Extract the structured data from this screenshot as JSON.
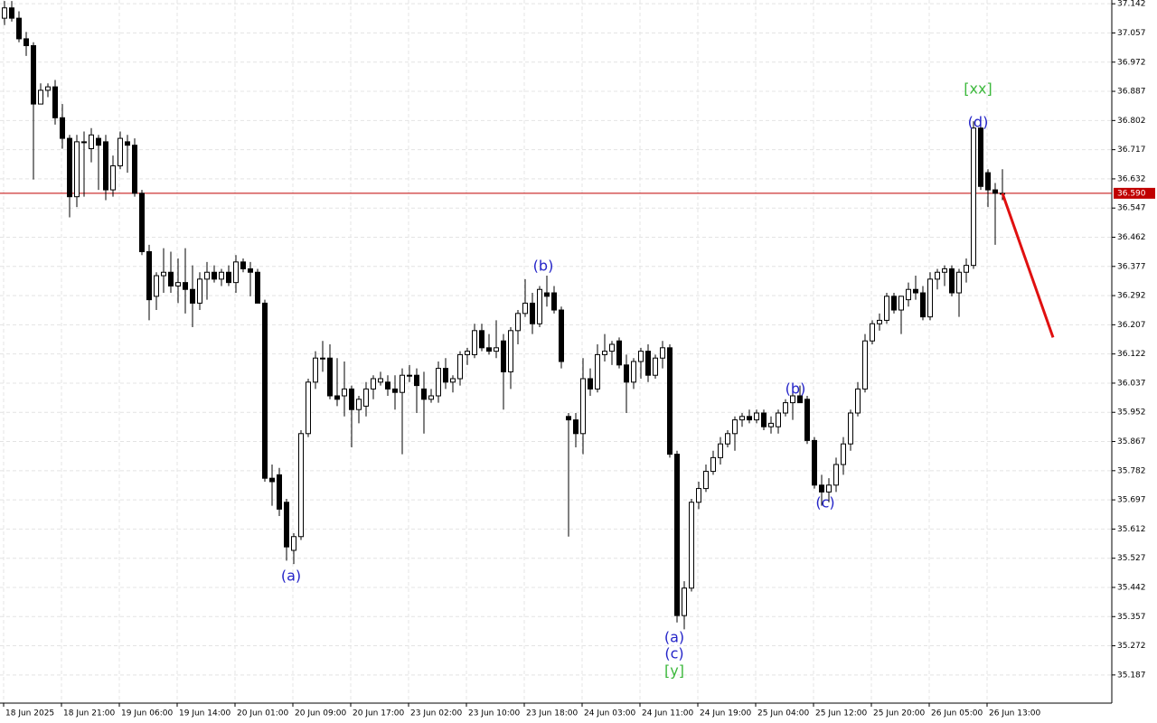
{
  "chart_data": {
    "type": "candlestick",
    "ylim": [
      35.105,
      37.153
    ],
    "yticks": [
      37.142,
      37.057,
      36.972,
      36.887,
      36.802,
      36.717,
      36.632,
      36.547,
      36.462,
      36.377,
      36.292,
      36.207,
      36.122,
      36.037,
      35.952,
      35.867,
      35.782,
      35.697,
      35.612,
      35.527,
      35.442,
      35.357,
      35.272,
      35.187
    ],
    "grid": true,
    "x_labels": [
      "18 Jun 2025",
      "18 Jun 21:00",
      "19 Jun 06:00",
      "19 Jun 14:00",
      "20 Jun 01:00",
      "20 Jun 09:00",
      "20 Jun 17:00",
      "23 Jun 02:00",
      "23 Jun 10:00",
      "23 Jun 18:00",
      "24 Jun 03:00",
      "24 Jun 11:00",
      "24 Jun 19:00",
      "25 Jun 04:00",
      "25 Jun 12:00",
      "25 Jun 20:00",
      "26 Jun 05:00",
      "26 Jun 13:00"
    ],
    "open": [
      37.1,
      37.13,
      37.1,
      37.04,
      37.02,
      36.85,
      36.89,
      36.9,
      36.81,
      36.75,
      36.58,
      36.74,
      36.72,
      36.75,
      36.74,
      36.6,
      36.67,
      36.74,
      36.73,
      36.59,
      36.42,
      36.29,
      36.35,
      36.36,
      36.32,
      36.33,
      36.31,
      36.27,
      36.34,
      36.36,
      36.34,
      36.36,
      36.33,
      36.39,
      36.37,
      36.36,
      36.27,
      35.76,
      35.77,
      35.69,
      35.55,
      35.59,
      35.89,
      36.04,
      36.11,
      36.11,
      36.0,
      36.0,
      36.02,
      35.96,
      35.97,
      36.02,
      36.04,
      36.04,
      36.02,
      36.01,
      36.06,
      36.06,
      36.02,
      35.99,
      36.0,
      36.08,
      36.04,
      36.05,
      36.12,
      36.12,
      36.19,
      36.14,
      36.13,
      36.16,
      36.07,
      36.19,
      36.24,
      36.27,
      36.21,
      36.3,
      36.3,
      36.25,
      35.94,
      35.93,
      35.89,
      36.05,
      36.02,
      36.12,
      36.13,
      36.16,
      36.09,
      36.04,
      36.1,
      36.13,
      36.06,
      36.11,
      36.14,
      35.83,
      35.36,
      35.44,
      35.69,
      35.73,
      35.78,
      35.82,
      35.86,
      35.89,
      35.93,
      35.94,
      35.93,
      35.95,
      35.91,
      35.91,
      35.95,
      35.98,
      36.0,
      35.99,
      35.87,
      35.74,
      35.72,
      35.74,
      35.8,
      35.86,
      35.95,
      36.02,
      36.16,
      36.21,
      36.22,
      36.29,
      36.25,
      36.28,
      36.31,
      36.3,
      36.23,
      36.34,
      36.36,
      36.37,
      36.3,
      36.36,
      36.38,
      36.78,
      36.65,
      36.6,
      36.59
    ],
    "high": [
      37.15,
      37.15,
      37.12,
      37.06,
      37.03,
      36.91,
      36.91,
      36.92,
      36.85,
      36.76,
      36.76,
      36.77,
      36.78,
      36.76,
      36.76,
      36.7,
      36.77,
      36.76,
      36.75,
      36.6,
      36.44,
      36.36,
      36.43,
      36.42,
      36.4,
      36.43,
      36.38,
      36.36,
      36.39,
      36.38,
      36.37,
      36.38,
      36.41,
      36.4,
      36.39,
      36.37,
      36.28,
      35.8,
      35.79,
      35.7,
      35.6,
      35.9,
      36.05,
      36.13,
      36.16,
      36.15,
      36.11,
      36.1,
      36.03,
      36.0,
      36.04,
      36.06,
      36.07,
      36.06,
      36.06,
      36.08,
      36.09,
      36.08,
      36.07,
      36.02,
      36.1,
      36.11,
      36.06,
      36.13,
      36.14,
      36.21,
      36.21,
      36.18,
      36.22,
      36.18,
      36.2,
      36.25,
      36.34,
      36.3,
      36.32,
      36.35,
      36.32,
      36.26,
      35.95,
      35.95,
      36.11,
      36.08,
      36.15,
      36.18,
      36.16,
      36.17,
      36.12,
      36.11,
      36.14,
      36.15,
      36.12,
      36.16,
      36.15,
      35.84,
      35.46,
      35.7,
      35.75,
      35.8,
      35.84,
      35.88,
      35.9,
      35.94,
      35.95,
      35.96,
      35.96,
      35.96,
      35.94,
      35.96,
      35.99,
      36.02,
      36.03,
      36.0,
      35.88,
      35.77,
      35.76,
      35.82,
      35.88,
      35.96,
      36.04,
      36.18,
      36.22,
      36.24,
      36.3,
      36.3,
      36.29,
      36.33,
      36.35,
      36.32,
      36.36,
      36.37,
      36.38,
      36.38,
      36.37,
      36.4,
      36.8,
      36.79,
      36.66,
      36.62,
      36.66
    ],
    "low": [
      37.08,
      37.09,
      37.03,
      36.99,
      36.63,
      36.85,
      36.87,
      36.79,
      36.72,
      36.52,
      36.55,
      36.58,
      36.68,
      36.6,
      36.57,
      36.58,
      36.66,
      36.65,
      36.58,
      36.41,
      36.22,
      36.25,
      36.3,
      36.3,
      36.27,
      36.24,
      36.2,
      36.25,
      36.28,
      36.33,
      36.32,
      36.32,
      36.3,
      36.36,
      36.29,
      36.27,
      35.75,
      35.68,
      35.65,
      35.52,
      35.51,
      35.58,
      35.88,
      36.02,
      36.07,
      35.99,
      35.97,
      35.94,
      35.85,
      35.92,
      35.94,
      35.99,
      36.03,
      36.0,
      35.96,
      35.83,
      36.04,
      35.95,
      35.89,
      35.98,
      35.98,
      36.02,
      36.01,
      36.03,
      36.09,
      36.11,
      36.13,
      36.12,
      36.11,
      35.96,
      36.02,
      36.15,
      36.23,
      36.18,
      36.2,
      36.26,
      36.24,
      36.08,
      35.59,
      35.85,
      35.83,
      36.0,
      36.01,
      36.1,
      36.09,
      36.08,
      35.95,
      36.02,
      36.05,
      36.04,
      36.05,
      36.08,
      35.82,
      35.34,
      35.32,
      35.43,
      35.67,
      35.72,
      35.77,
      35.8,
      35.85,
      35.84,
      35.91,
      35.92,
      35.92,
      35.9,
      35.89,
      35.89,
      35.94,
      35.93,
      35.98,
      35.86,
      35.73,
      35.68,
      35.69,
      35.72,
      35.77,
      35.84,
      35.94,
      36.01,
      36.15,
      36.19,
      36.21,
      36.24,
      36.18,
      36.26,
      36.28,
      36.22,
      36.22,
      36.31,
      36.32,
      36.29,
      36.23,
      36.33,
      36.37,
      36.6,
      36.55,
      36.44,
      36.57
    ],
    "close": [
      37.13,
      37.1,
      37.04,
      37.02,
      36.85,
      36.89,
      36.9,
      36.81,
      36.75,
      36.58,
      36.74,
      36.74,
      36.76,
      36.73,
      36.6,
      36.67,
      36.75,
      36.73,
      36.59,
      36.42,
      36.28,
      36.35,
      36.36,
      36.32,
      36.33,
      36.31,
      36.27,
      36.34,
      36.36,
      36.34,
      36.36,
      36.33,
      36.39,
      36.37,
      36.36,
      36.27,
      35.76,
      35.75,
      35.67,
      35.56,
      35.59,
      35.89,
      36.04,
      36.11,
      36.11,
      36.0,
      35.99,
      36.02,
      35.96,
      35.99,
      36.02,
      36.05,
      36.05,
      36.02,
      36.01,
      36.06,
      36.06,
      36.03,
      35.99,
      36.0,
      36.08,
      36.04,
      36.05,
      36.12,
      36.13,
      36.19,
      36.14,
      36.13,
      36.14,
      36.07,
      36.19,
      36.24,
      36.27,
      36.21,
      36.31,
      36.29,
      36.25,
      36.1,
      35.93,
      35.89,
      36.05,
      36.02,
      36.12,
      36.13,
      36.15,
      36.09,
      36.04,
      36.1,
      36.13,
      36.06,
      36.11,
      36.14,
      35.83,
      35.36,
      35.44,
      35.69,
      35.73,
      35.78,
      35.82,
      35.86,
      35.89,
      35.93,
      35.94,
      35.93,
      35.95,
      35.91,
      35.92,
      35.95,
      35.98,
      36.0,
      35.98,
      35.87,
      35.74,
      35.72,
      35.74,
      35.8,
      35.86,
      35.95,
      36.02,
      36.16,
      36.21,
      36.22,
      36.29,
      36.25,
      36.29,
      36.31,
      36.3,
      36.23,
      36.34,
      36.36,
      36.37,
      36.3,
      36.36,
      36.38,
      36.78,
      36.61,
      36.6,
      36.59,
      36.59
    ],
    "up_color": "#ffffff",
    "down_color": "#000000",
    "current_price": {
      "value": 36.59,
      "label": "36.590",
      "color": "#c00000"
    },
    "forecast": {
      "values": [
        36.59,
        36.17
      ],
      "color": "#e01010"
    },
    "annotations": [
      {
        "text": "(a)",
        "color": "#2424c8"
      },
      {
        "text": "(b)",
        "color": "#2424c8"
      },
      {
        "text": "(a)",
        "color": "#2424c8"
      },
      {
        "text": "(c)",
        "color": "#2424c8"
      },
      {
        "text": "[y]",
        "color": "#3cb83c"
      },
      {
        "text": "(b)",
        "color": "#2424c8"
      },
      {
        "text": "(c)",
        "color": "#2424c8"
      },
      {
        "text": "(d)",
        "color": "#2424c8"
      },
      {
        "text": "[xx]",
        "color": "#3cb83c"
      }
    ]
  }
}
